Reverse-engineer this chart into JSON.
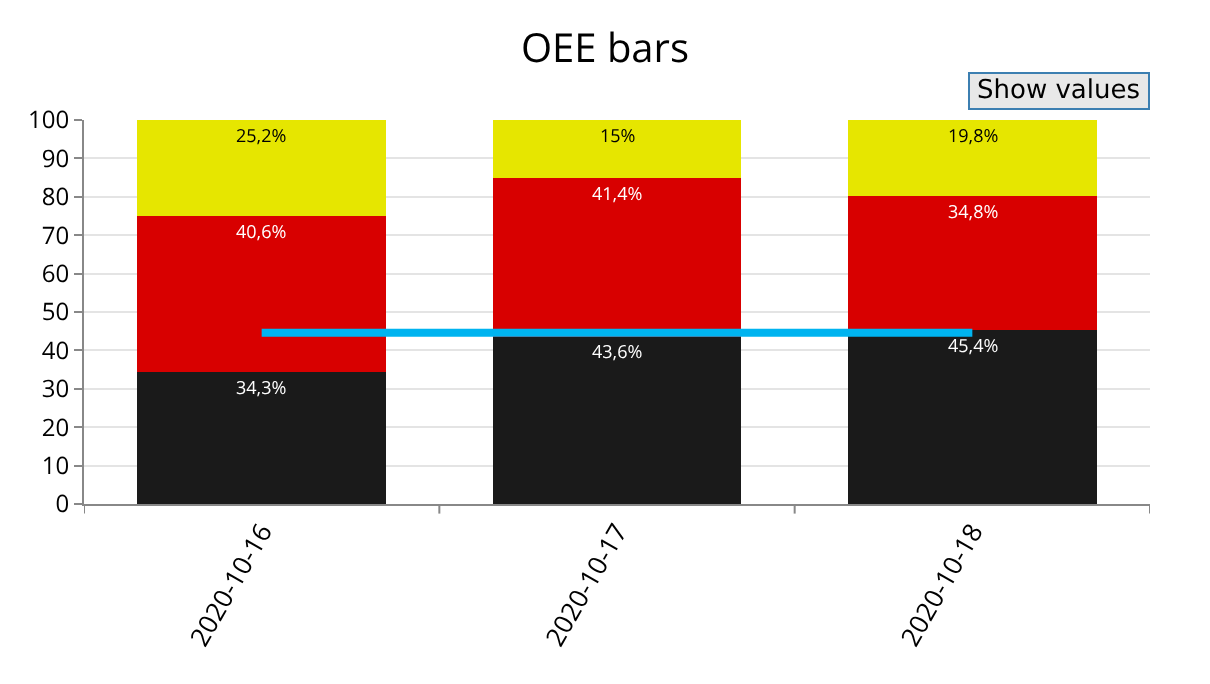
{
  "chart_data": {
    "type": "bar",
    "title": "OEE bars",
    "stacked": true,
    "categories": [
      "2020-10-16",
      "2020-10-17",
      "2020-10-18"
    ],
    "series": [
      {
        "color": "#1a1a1a",
        "values": [
          34.3,
          43.6,
          45.4
        ],
        "value_labels": [
          "34,3%",
          "43,6%",
          "45,4%"
        ]
      },
      {
        "color": "#d80000",
        "values": [
          40.6,
          41.4,
          34.8
        ],
        "value_labels": [
          "40,6%",
          "41,4%",
          "34,8%"
        ]
      },
      {
        "color": "#e6e600",
        "values": [
          25.2,
          15,
          19.8
        ],
        "value_labels": [
          "25,2%",
          "15%",
          "19,8%"
        ]
      },
      {
        "type": "line",
        "color": "#00b4f0",
        "values": [
          44.6,
          44.6,
          44.6
        ],
        "marker": "none"
      }
    ],
    "ylim": [
      0,
      100
    ],
    "yticks": [
      0,
      10,
      20,
      30,
      40,
      50,
      60,
      70,
      80,
      90,
      100
    ],
    "grid": "y",
    "legend": false,
    "annotations": [
      "Show values"
    ]
  }
}
